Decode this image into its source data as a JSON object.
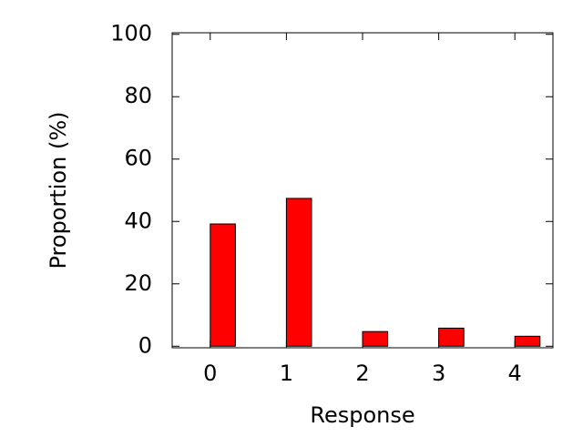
{
  "chart_data": {
    "type": "bar",
    "x_label": "Response",
    "y_label": "Proportion (%)",
    "x": [
      0,
      1,
      2,
      3,
      4
    ],
    "values": [
      39.2,
      47.4,
      4.7,
      5.8,
      3.2
    ],
    "color": "#ff0000",
    "xlim": [
      -0.5,
      4.5
    ],
    "xticks": [
      0,
      1,
      2,
      3,
      4
    ],
    "ylim": [
      -0.5,
      100.5
    ],
    "yticks": [
      0,
      20,
      40,
      60,
      80,
      100
    ],
    "grid": false
  }
}
